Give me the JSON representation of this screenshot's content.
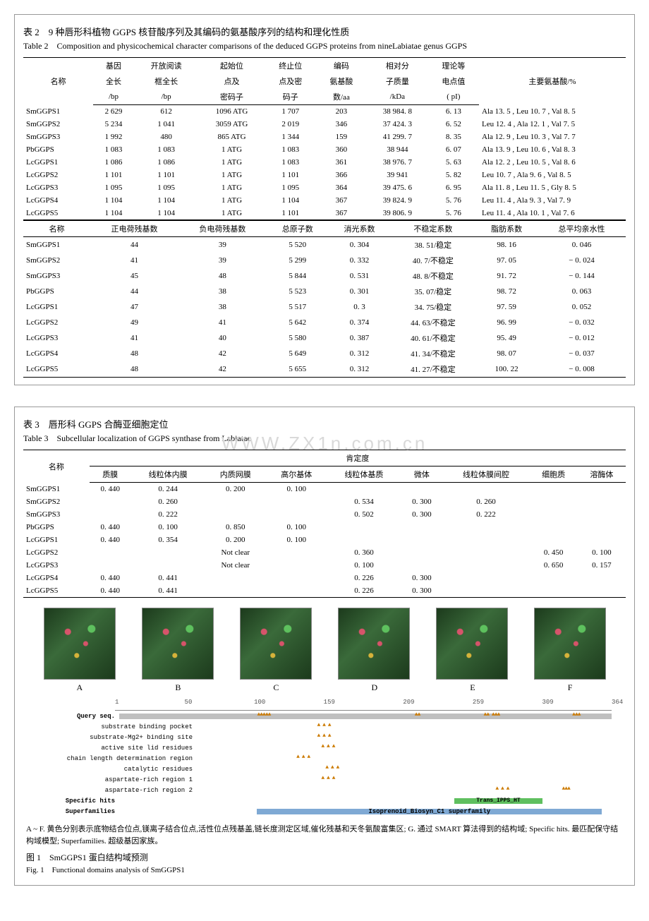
{
  "table2": {
    "title_cn": "表 2　9 种唇形科植物 GGPS 核苷酸序列及其编码的氨基酸序列的结构和理化性质",
    "title_en": "Table 2　Composition and physicochemical character comparisons of the deduced GGPS proteins from nineLabiatae genus GGPS",
    "head": {
      "name": "名称",
      "gene_len_l1": "基因",
      "gene_len_l2": "全长",
      "gene_len_l3": "/bp",
      "orf_l1": "开放阅读",
      "orf_l2": "框全长",
      "orf_l3": "/bp",
      "start_l1": "起始位",
      "start_l2": "点及",
      "start_l3": "密码子",
      "stop_l1": "终止位",
      "stop_l2": "点及密",
      "stop_l3": "码子",
      "aa_l1": "编码",
      "aa_l2": "氨基酸",
      "aa_l3": "数/aa",
      "mw_l1": "相对分",
      "mw_l2": "子质量",
      "mw_l3": "/kDa",
      "pi_l1": "理论等",
      "pi_l2": "电点值",
      "pi_l3": "( pI)",
      "main_aa": "主要氨基酸/%"
    },
    "rows": [
      {
        "n": "SmGGPS1",
        "gl": "2 629",
        "orf": "612",
        "start": "1096 ATG",
        "stop": "1 707",
        "aa": "203",
        "mw": "38 984. 8",
        "pi": "6. 13",
        "ma": "Ala 13. 5 , Leu 10. 7 , Val 8. 5"
      },
      {
        "n": "SmGGPS2",
        "gl": "5 234",
        "orf": "1 041",
        "start": "3059 ATG",
        "stop": "2 019",
        "aa": "346",
        "mw": "37 424. 3",
        "pi": "6. 52",
        "ma": "Leu 12. 4 , Ala 12. 1 , Val 7. 5"
      },
      {
        "n": "SmGGPS3",
        "gl": "1 992",
        "orf": "480",
        "start": "865 ATG",
        "stop": "1 344",
        "aa": "159",
        "mw": "41 299. 7",
        "pi": "8. 35",
        "ma": "Ala 12. 9 , Leu 10. 3 , Val 7. 7"
      },
      {
        "n": "PbGGPS",
        "gl": "1 083",
        "orf": "1 083",
        "start": "1 ATG",
        "stop": "1 083",
        "aa": "360",
        "mw": "38 944",
        "pi": "6. 07",
        "ma": "Ala 13. 9 , Leu 10. 6 , Val 8. 3"
      },
      {
        "n": "LcGGPS1",
        "gl": "1 086",
        "orf": "1 086",
        "start": "1 ATG",
        "stop": "1 083",
        "aa": "361",
        "mw": "38 976. 7",
        "pi": "5. 63",
        "ma": "Ala 12. 2 , Leu 10. 5 , Val 8. 6"
      },
      {
        "n": "LcGGPS2",
        "gl": "1 101",
        "orf": "1 101",
        "start": "1 ATG",
        "stop": "1 101",
        "aa": "366",
        "mw": "39 941",
        "pi": "5. 82",
        "ma": "Leu 10. 7 , Ala 9. 6 , Val 8. 5"
      },
      {
        "n": "LcGGPS3",
        "gl": "1 095",
        "orf": "1 095",
        "start": "1 ATG",
        "stop": "1 095",
        "aa": "364",
        "mw": "39 475. 6",
        "pi": "6. 95",
        "ma": "Ala 11. 8 , Leu 11. 5 , Gly 8. 5"
      },
      {
        "n": "LcGGPS4",
        "gl": "1 104",
        "orf": "1 104",
        "start": "1 ATG",
        "stop": "1 104",
        "aa": "367",
        "mw": "39 824. 9",
        "pi": "5. 76",
        "ma": "Leu 11. 4 , Ala 9. 3 , Val 7. 9"
      },
      {
        "n": "LcGGPS5",
        "gl": "1 104",
        "orf": "1 104",
        "start": "1 ATG",
        "stop": "1 101",
        "aa": "367",
        "mw": "39 806. 9",
        "pi": "5. 76",
        "ma": "Leu 11. 4 , Ala 10. 1 , Val 7. 6"
      }
    ],
    "head2": {
      "name": "名称",
      "pos": "正电荷残基数",
      "neg": "负电荷残基数",
      "atoms": "总原子数",
      "ext": "消光系数",
      "instab": "不稳定系数",
      "ali": "脂肪系数",
      "gravy": "总平均亲水性"
    },
    "rows2": [
      {
        "n": "SmGGPS1",
        "p": "44",
        "ng": "39",
        "a": "5 520",
        "e": "0. 304",
        "i": "38. 51/稳定",
        "al": "98. 16",
        "g": "0. 046"
      },
      {
        "n": "SmGGPS2",
        "p": "41",
        "ng": "39",
        "a": "5 299",
        "e": "0. 332",
        "i": "40. 7/不稳定",
        "al": "97. 05",
        "g": "− 0. 024"
      },
      {
        "n": "SmGGPS3",
        "p": "45",
        "ng": "48",
        "a": "5 844",
        "e": "0. 531",
        "i": "48. 8/不稳定",
        "al": "91. 72",
        "g": "− 0. 144"
      },
      {
        "n": "PbGGPS",
        "p": "44",
        "ng": "38",
        "a": "5 523",
        "e": "0. 301",
        "i": "35. 07/稳定",
        "al": "98. 72",
        "g": "0. 063"
      },
      {
        "n": "LcGGPS1",
        "p": "47",
        "ng": "38",
        "a": "5 517",
        "e": "0. 3",
        "i": "34. 75/稳定",
        "al": "97. 59",
        "g": "0. 052"
      },
      {
        "n": "LcGGPS2",
        "p": "49",
        "ng": "41",
        "a": "5 642",
        "e": "0. 374",
        "i": "44. 63/不稳定",
        "al": "96. 99",
        "g": "− 0. 032"
      },
      {
        "n": "LcGGPS3",
        "p": "41",
        "ng": "40",
        "a": "5 580",
        "e": "0. 387",
        "i": "40. 61/不稳定",
        "al": "95. 49",
        "g": "− 0. 012"
      },
      {
        "n": "LcGGPS4",
        "p": "48",
        "ng": "42",
        "a": "5 649",
        "e": "0. 312",
        "i": "41. 34/不稳定",
        "al": "98. 07",
        "g": "− 0. 037"
      },
      {
        "n": "LcGGPS5",
        "p": "48",
        "ng": "42",
        "a": "5 655",
        "e": "0. 312",
        "i": "41. 27/不稳定",
        "al": "100. 22",
        "g": "− 0. 008"
      }
    ]
  },
  "table3": {
    "title_cn": "表 3　唇形科 GGPS 合酶亚细胞定位",
    "title_en": "Table 3　Subcellular localization of GGPS synthase from Labiatae",
    "watermark": "WWW.ZX1n.com.cn",
    "head": {
      "name": "名称",
      "group": "肯定度",
      "c1": "质膜",
      "c2": "线粒体内膜",
      "c3": "内质网膜",
      "c4": "高尔基体",
      "c5": "线粒体基质",
      "c6": "微体",
      "c7": "线粒体膜间腔",
      "c8": "细胞质",
      "c9": "溶酶体"
    },
    "rows": [
      {
        "n": "SmGGPS1",
        "v": [
          "0. 440",
          "0. 244",
          "0. 200",
          "0. 100",
          "",
          "",
          "",
          "",
          ""
        ]
      },
      {
        "n": "SmGGPS2",
        "v": [
          "",
          "0. 260",
          "",
          "",
          "0. 534",
          "0. 300",
          "0. 260",
          "",
          ""
        ]
      },
      {
        "n": "SmGGPS3",
        "v": [
          "",
          "0. 222",
          "",
          "",
          "0. 502",
          "0. 300",
          "0. 222",
          "",
          ""
        ]
      },
      {
        "n": "PbGGPS",
        "v": [
          "0. 440",
          "0. 100",
          "0. 850",
          "0. 100",
          "",
          "",
          "",
          "",
          ""
        ]
      },
      {
        "n": "LcGGPS1",
        "v": [
          "0. 440",
          "0. 354",
          "0. 200",
          "0. 100",
          "",
          "",
          "",
          "",
          ""
        ]
      },
      {
        "n": "LcGGPS2",
        "v": [
          "",
          "",
          "Not clear",
          "",
          "0. 360",
          "",
          "",
          "0. 450",
          "0. 100"
        ]
      },
      {
        "n": "LcGGPS3",
        "v": [
          "",
          "",
          "Not clear",
          "",
          "0. 100",
          "",
          "",
          "0. 650",
          "0. 157"
        ]
      },
      {
        "n": "LcGGPS4",
        "v": [
          "0. 440",
          "0. 441",
          "",
          "",
          "0. 226",
          "0. 300",
          "",
          "",
          ""
        ]
      },
      {
        "n": "LcGGPS5",
        "v": [
          "0. 440",
          "0. 441",
          "",
          "",
          "0. 226",
          "0. 300",
          "",
          "",
          ""
        ]
      }
    ],
    "thumbs": [
      "A",
      "B",
      "C",
      "D",
      "E",
      "F"
    ],
    "domain": {
      "scale_ticks": [
        {
          "pos": 0,
          "lab": "1"
        },
        {
          "pos": 14,
          "lab": "50"
        },
        {
          "pos": 28,
          "lab": "100"
        },
        {
          "pos": 42,
          "lab": "159"
        },
        {
          "pos": 58,
          "lab": "209"
        },
        {
          "pos": 72,
          "lab": "259"
        },
        {
          "pos": 86,
          "lab": "309"
        },
        {
          "pos": 100,
          "lab": "364"
        }
      ],
      "query": "Query seq.",
      "feat_labels": [
        "substrate binding pocket",
        "substrate-Mg2+ binding site",
        "active site lid residues",
        "chain length determination region",
        "catalytic residues",
        "aspartate-rich region 1",
        "aspartate-rich region 2"
      ],
      "specific": "Specific hits",
      "specific_hit": "Trans_IPPS_HT",
      "super": "Superfamilies",
      "super_hit": "Isoprenoid_Biosyn_C1 superfamily"
    },
    "caption": "A ~ F. 黄色分别表示底物结合位点,镁离子结合位点,活性位点残基盖,链长度测定区域,催化残基和天冬氨酸富集区; G. 通过 SMART 算法得到的结构域; Specific hits. 最匹配保守结构域模型; Superfamilies. 超级基因家族。",
    "fig_cn": "图 1　SmGGPS1 蛋白结构域预测",
    "fig_en": "Fig. 1　Functional domains analysis of SmGGPS1"
  },
  "colors": {
    "border": "#999999",
    "rule": "#000000",
    "bg": "#ffffff",
    "thumb_dark": "#1c3a1c",
    "thumb_light": "#3a6a3a",
    "spec_bar": "#5fbf5f",
    "super_bar": "#7fa9d4",
    "query_bar": "#bfbfbf",
    "tri": "#cc7a00",
    "watermark": "#d9d9d9"
  }
}
